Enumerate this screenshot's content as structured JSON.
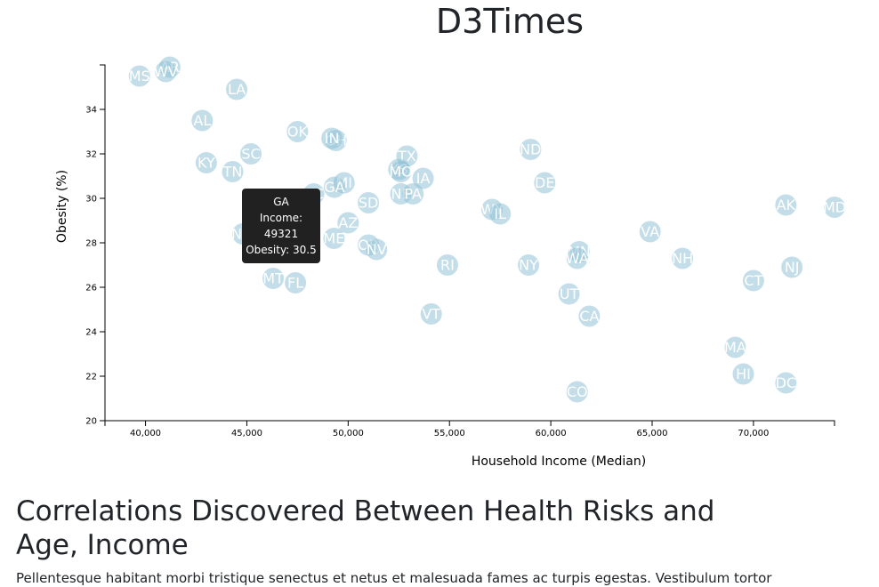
{
  "page": {
    "title": "D3Times",
    "heading": "Correlations Discovered Between Health Risks and Age, Income",
    "paragraph": "Pellentesque habitant morbi tristique senectus et netus et malesuada fames ac turpis egestas. Vestibulum tortor"
  },
  "tooltip": {
    "state": "GA",
    "income_line": "Income: 49321",
    "obesity_line": "Obesity: 30.5"
  },
  "colors": {
    "marker": "#89bdd3",
    "marker_text": "#ffffff",
    "tooltip_bg": "#212121"
  },
  "chart_data": {
    "type": "scatter",
    "xlabel": "Household Income (Median)",
    "ylabel": "Obesity (%)",
    "xlim": [
      38000,
      74000
    ],
    "ylim": [
      20,
      36
    ],
    "x_ticks": [
      "40,000",
      "45,000",
      "50,000",
      "55,000",
      "60,000",
      "65,000",
      "70,000"
    ],
    "x_tick_values": [
      40000,
      45000,
      50000,
      55000,
      60000,
      65000,
      70000
    ],
    "y_ticks": [
      "20",
      "22",
      "24",
      "26",
      "28",
      "30",
      "32",
      "34"
    ],
    "y_tick_values": [
      20,
      22,
      24,
      26,
      28,
      30,
      32,
      34
    ],
    "grid": false,
    "points": [
      {
        "label": "MS",
        "x": 39700,
        "y": 35.5
      },
      {
        "label": "AR",
        "x": 41200,
        "y": 35.9
      },
      {
        "label": "WV",
        "x": 41000,
        "y": 35.7
      },
      {
        "label": "LA",
        "x": 44500,
        "y": 34.9
      },
      {
        "label": "AL",
        "x": 42800,
        "y": 33.5
      },
      {
        "label": "OK",
        "x": 47500,
        "y": 33.0
      },
      {
        "label": "OH",
        "x": 49400,
        "y": 32.6
      },
      {
        "label": "IN",
        "x": 49200,
        "y": 32.7
      },
      {
        "label": "KY",
        "x": 43000,
        "y": 31.6
      },
      {
        "label": "SC",
        "x": 45200,
        "y": 32.0
      },
      {
        "label": "TN",
        "x": 44300,
        "y": 31.2
      },
      {
        "label": "TX",
        "x": 52900,
        "y": 31.9
      },
      {
        "label": "KS",
        "x": 52500,
        "y": 31.3
      },
      {
        "label": "MO",
        "x": 52600,
        "y": 31.2
      },
      {
        "label": "ND",
        "x": 59000,
        "y": 32.2
      },
      {
        "label": "IA",
        "x": 53700,
        "y": 30.9
      },
      {
        "label": "DE",
        "x": 59700,
        "y": 30.7
      },
      {
        "label": "MI",
        "x": 49800,
        "y": 30.7
      },
      {
        "label": "GA",
        "x": 49321,
        "y": 30.5
      },
      {
        "label": "NC",
        "x": 48300,
        "y": 30.2
      },
      {
        "label": "NE",
        "x": 52600,
        "y": 30.2
      },
      {
        "label": "PA",
        "x": 53200,
        "y": 30.2
      },
      {
        "label": "SD",
        "x": 51000,
        "y": 29.8
      },
      {
        "label": "WY",
        "x": 57100,
        "y": 29.5
      },
      {
        "label": "IL",
        "x": 57500,
        "y": 29.3
      },
      {
        "label": "AK",
        "x": 71600,
        "y": 29.7
      },
      {
        "label": "MD",
        "x": 74000,
        "y": 29.6
      },
      {
        "label": "AZ",
        "x": 50000,
        "y": 28.9
      },
      {
        "label": "NM",
        "x": 44800,
        "y": 28.4
      },
      {
        "label": "ME",
        "x": 49300,
        "y": 28.2
      },
      {
        "label": "VA",
        "x": 64900,
        "y": 28.5
      },
      {
        "label": "OR",
        "x": 51000,
        "y": 27.9
      },
      {
        "label": "NV",
        "x": 51400,
        "y": 27.7
      },
      {
        "label": "MN",
        "x": 61400,
        "y": 27.6
      },
      {
        "label": "WA",
        "x": 61300,
        "y": 27.3
      },
      {
        "label": "NH",
        "x": 66500,
        "y": 27.3
      },
      {
        "label": "RI",
        "x": 54900,
        "y": 27.0
      },
      {
        "label": "NY",
        "x": 58900,
        "y": 27.0
      },
      {
        "label": "NJ",
        "x": 71900,
        "y": 26.9
      },
      {
        "label": "MT",
        "x": 46300,
        "y": 26.4
      },
      {
        "label": "FL",
        "x": 47400,
        "y": 26.2
      },
      {
        "label": "CT",
        "x": 70000,
        "y": 26.3
      },
      {
        "label": "UT",
        "x": 60900,
        "y": 25.7
      },
      {
        "label": "CA",
        "x": 61900,
        "y": 24.7
      },
      {
        "label": "VT",
        "x": 54100,
        "y": 24.8
      },
      {
        "label": "MA",
        "x": 69100,
        "y": 23.3
      },
      {
        "label": "HI",
        "x": 69500,
        "y": 22.1
      },
      {
        "label": "DC",
        "x": 71600,
        "y": 21.7
      },
      {
        "label": "CO",
        "x": 61300,
        "y": 21.3
      }
    ]
  }
}
